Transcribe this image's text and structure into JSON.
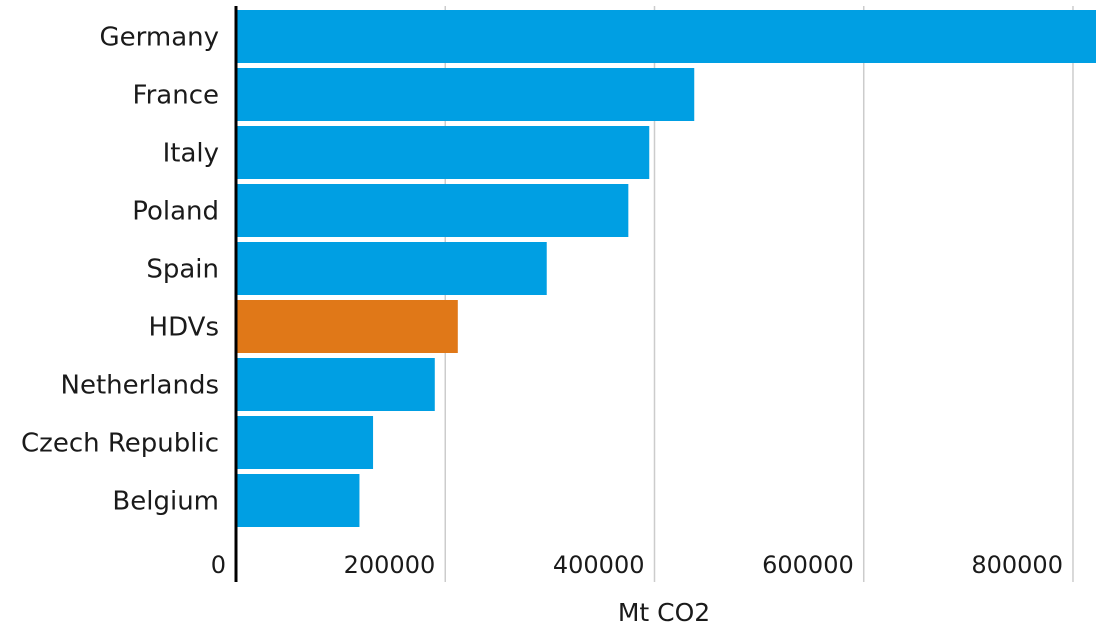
{
  "chart_data": {
    "type": "bar",
    "orientation": "horizontal",
    "categories": [
      "Germany",
      "France",
      "Italy",
      "Poland",
      "Spain",
      "HDVs",
      "Netherlands",
      "Czech Republic",
      "Belgium"
    ],
    "values": [
      822000,
      438000,
      395000,
      375000,
      297000,
      212000,
      190000,
      131000,
      118000
    ],
    "highlight": "HDVs",
    "colors": {
      "default": "#009fe3",
      "highlight": "#e07818",
      "grid": "#cccccc",
      "axis": "#000000"
    },
    "xlabel": "Mt CO2",
    "xlim": [
      0,
      822000
    ],
    "xticks": [
      0,
      200000,
      400000,
      600000,
      800000
    ],
    "grid": "vertical"
  }
}
